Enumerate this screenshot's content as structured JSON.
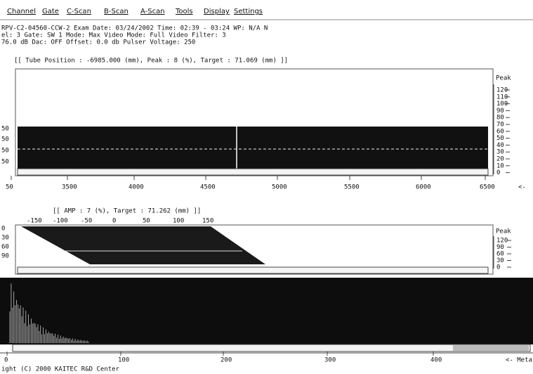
{
  "menu": [
    "Channel",
    "Gate",
    "C-Scan",
    "B-Scan",
    "A-Scan",
    "Tools",
    "Display",
    "Settings"
  ],
  "header": {
    "lines": [
      "RPV-C2-04560-CCW-2  Exam Date: 03/24/2002  Time: 02:39 - 03:24  WP: N/A  N",
      "el: 3  Gate: SW 1  Mode: Max  Video Mode: Full  Video Filter: 3",
      "76.0 dB  Dac: OFF  Offset: 0.0 db  Pulser Voltage: 250"
    ]
  },
  "cscan": {
    "status": "[[ Tube Position : -6985.000 (mm),  Peak :  8 (%),  Target : 71.069 (mm) ]]",
    "left_labels": [
      "50",
      "50",
      "50",
      "50"
    ],
    "x_labels": [
      "50",
      "3500",
      "4000",
      "4500",
      "5000",
      "5500",
      "6000",
      "6500"
    ],
    "scale_title": "Peak",
    "scale_labels": [
      "120",
      "110",
      "100",
      "90",
      "80",
      "70",
      "60",
      "50",
      "40",
      "30",
      "20",
      "10",
      "0"
    ],
    "arrow": "<-"
  },
  "bscan": {
    "status": "[[ AMP :  7 (%),  Target : 71.262 (mm) ]]",
    "top_labels": [
      "-150",
      "-100",
      "-50",
      "0",
      "50",
      "100",
      "150"
    ],
    "left_labels": [
      "0",
      "30",
      "60",
      "90"
    ],
    "scale_title": "Peak",
    "scale_labels": [
      "120",
      "90",
      "60",
      "30",
      "0"
    ]
  },
  "ascan": {
    "x_labels": [
      "0",
      "100",
      "200",
      "300",
      "400"
    ],
    "meta": "<- Meta"
  },
  "footer": "ight (C) 2000  KAITEC R&D Center"
}
